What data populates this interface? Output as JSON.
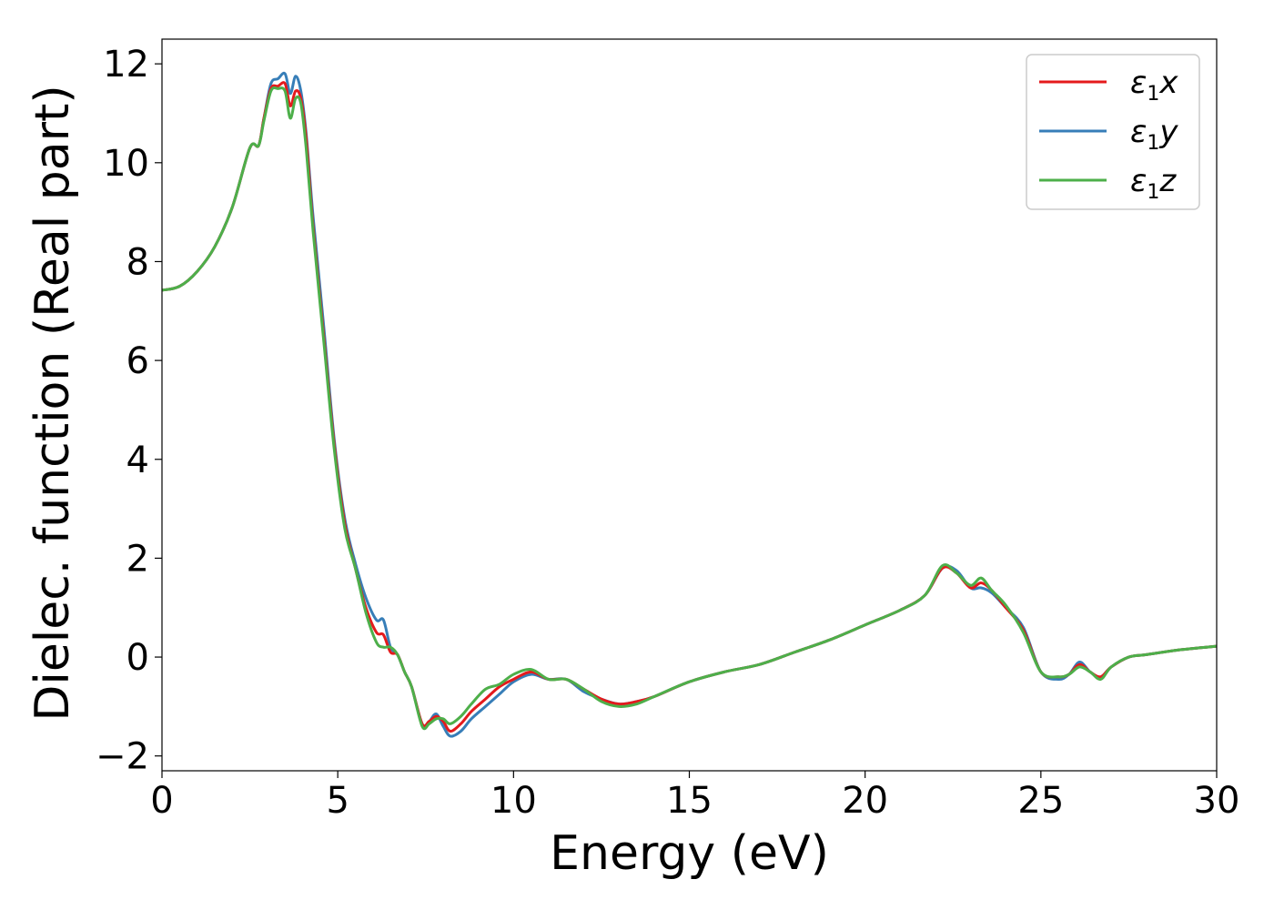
{
  "chart_data": {
    "type": "line",
    "xlabel": "Energy (eV)",
    "ylabel": "Dielec. function (Real part)",
    "xlim": [
      0,
      30
    ],
    "ylim": [
      -2.3,
      12.5
    ],
    "xticks": [
      0,
      5,
      10,
      15,
      20,
      25,
      30
    ],
    "xtick_labels": [
      "0",
      "5",
      "10",
      "15",
      "20",
      "25",
      "30"
    ],
    "yticks": [
      -2,
      0,
      2,
      4,
      6,
      8,
      10,
      12
    ],
    "ytick_labels": [
      "−2",
      "0",
      "2",
      "4",
      "6",
      "8",
      "10",
      "12"
    ],
    "grid": false,
    "legend_position": "top-right",
    "series": [
      {
        "name": "ε₁x",
        "base": "ε",
        "sub": "1",
        "comp": "x",
        "color": "#e41a1c",
        "x": [
          0,
          0.5,
          1,
          1.5,
          2,
          2.5,
          2.75,
          2.9,
          3.1,
          3.3,
          3.5,
          3.65,
          3.8,
          3.95,
          4.1,
          4.3,
          4.6,
          4.9,
          5.2,
          5.5,
          5.8,
          6.1,
          6.3,
          6.5,
          6.7,
          6.9,
          7.1,
          7.4,
          7.6,
          7.8,
          8,
          8.2,
          8.5,
          8.8,
          9.2,
          9.6,
          10,
          10.5,
          11,
          11.5,
          12,
          12.5,
          13,
          13.5,
          14,
          15,
          16,
          17,
          18,
          19,
          20,
          21,
          21.7,
          22.2,
          22.6,
          23,
          23.3,
          23.6,
          24,
          24.5,
          25,
          25.5,
          25.8,
          26.1,
          26.4,
          26.7,
          27,
          27.5,
          28,
          29,
          30
        ],
        "y": [
          7.42,
          7.5,
          7.8,
          8.3,
          9.1,
          10.3,
          10.35,
          10.9,
          11.5,
          11.55,
          11.6,
          11.15,
          11.45,
          11.3,
          10.5,
          8.7,
          6.5,
          4.3,
          2.7,
          1.8,
          1.0,
          0.5,
          0.45,
          0.1,
          0.05,
          -0.3,
          -0.6,
          -1.35,
          -1.3,
          -1.2,
          -1.3,
          -1.5,
          -1.35,
          -1.1,
          -0.85,
          -0.6,
          -0.45,
          -0.3,
          -0.45,
          -0.45,
          -0.65,
          -0.85,
          -0.95,
          -0.9,
          -0.8,
          -0.5,
          -0.3,
          -0.15,
          0.1,
          0.35,
          0.65,
          0.95,
          1.25,
          1.8,
          1.7,
          1.4,
          1.5,
          1.35,
          1.0,
          0.55,
          -0.3,
          -0.4,
          -0.35,
          -0.15,
          -0.3,
          -0.4,
          -0.2,
          0,
          0.05,
          0.15,
          0.22
        ]
      },
      {
        "name": "ε₁y",
        "base": "ε",
        "sub": "1",
        "comp": "y",
        "color": "#377eb8",
        "x": [
          0,
          0.5,
          1,
          1.5,
          2,
          2.5,
          2.75,
          2.9,
          3.1,
          3.3,
          3.5,
          3.65,
          3.8,
          3.95,
          4.1,
          4.3,
          4.6,
          4.9,
          5.2,
          5.5,
          5.8,
          6.1,
          6.3,
          6.5,
          6.7,
          6.9,
          7.1,
          7.4,
          7.6,
          7.8,
          8,
          8.2,
          8.5,
          8.8,
          9.2,
          9.6,
          10,
          10.5,
          11,
          11.5,
          12,
          12.5,
          13,
          13.5,
          14,
          15,
          16,
          17,
          18,
          19,
          20,
          21,
          21.7,
          22.2,
          22.6,
          23,
          23.3,
          23.6,
          24,
          24.5,
          25,
          25.5,
          25.8,
          26.1,
          26.4,
          26.7,
          27,
          27.5,
          28,
          29,
          30
        ],
        "y": [
          7.42,
          7.5,
          7.8,
          8.3,
          9.1,
          10.3,
          10.35,
          10.9,
          11.6,
          11.7,
          11.8,
          11.4,
          11.75,
          11.45,
          10.6,
          8.9,
          6.7,
          4.4,
          2.8,
          1.9,
          1.2,
          0.75,
          0.75,
          0.2,
          0.05,
          -0.3,
          -0.6,
          -1.35,
          -1.3,
          -1.15,
          -1.4,
          -1.6,
          -1.5,
          -1.25,
          -1.0,
          -0.75,
          -0.5,
          -0.35,
          -0.45,
          -0.45,
          -0.7,
          -0.85,
          -0.95,
          -0.9,
          -0.8,
          -0.5,
          -0.3,
          -0.15,
          0.1,
          0.35,
          0.65,
          0.95,
          1.25,
          1.8,
          1.75,
          1.4,
          1.4,
          1.3,
          1.0,
          0.6,
          -0.3,
          -0.45,
          -0.35,
          -0.1,
          -0.3,
          -0.4,
          -0.2,
          0,
          0.05,
          0.15,
          0.22
        ]
      },
      {
        "name": "ε₁z",
        "base": "ε",
        "sub": "1",
        "comp": "z",
        "color": "#4daf4a",
        "x": [
          0,
          0.5,
          1,
          1.5,
          2,
          2.5,
          2.75,
          2.9,
          3.1,
          3.3,
          3.5,
          3.65,
          3.8,
          3.95,
          4.1,
          4.3,
          4.6,
          4.9,
          5.2,
          5.5,
          5.8,
          6.1,
          6.3,
          6.5,
          6.7,
          6.9,
          7.1,
          7.4,
          7.6,
          7.8,
          8,
          8.2,
          8.5,
          8.8,
          9.2,
          9.6,
          10,
          10.5,
          11,
          11.5,
          12,
          12.5,
          13,
          13.5,
          14,
          15,
          16,
          17,
          18,
          19,
          20,
          21,
          21.7,
          22.2,
          22.6,
          23,
          23.3,
          23.6,
          24,
          24.5,
          25,
          25.5,
          25.8,
          26.1,
          26.4,
          26.7,
          27,
          27.5,
          28,
          29,
          30
        ],
        "y": [
          7.42,
          7.5,
          7.8,
          8.3,
          9.1,
          10.3,
          10.35,
          10.85,
          11.45,
          11.5,
          11.45,
          10.9,
          11.3,
          11.2,
          10.3,
          8.6,
          6.4,
          4.2,
          2.6,
          1.8,
          0.9,
          0.3,
          0.2,
          0.2,
          0.05,
          -0.3,
          -0.6,
          -1.4,
          -1.35,
          -1.25,
          -1.25,
          -1.35,
          -1.2,
          -0.95,
          -0.65,
          -0.55,
          -0.35,
          -0.25,
          -0.45,
          -0.45,
          -0.65,
          -0.9,
          -1.0,
          -0.95,
          -0.8,
          -0.5,
          -0.3,
          -0.15,
          0.1,
          0.35,
          0.65,
          0.95,
          1.25,
          1.85,
          1.7,
          1.45,
          1.6,
          1.35,
          1.05,
          0.5,
          -0.3,
          -0.4,
          -0.35,
          -0.2,
          -0.3,
          -0.45,
          -0.2,
          0,
          0.05,
          0.15,
          0.22
        ]
      }
    ]
  }
}
